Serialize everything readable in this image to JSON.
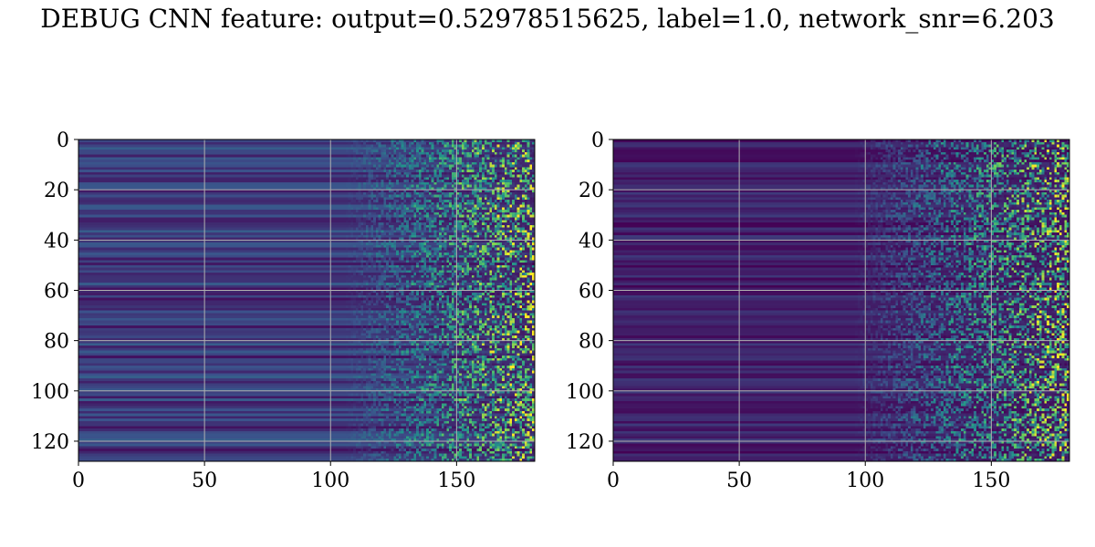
{
  "title": "DEBUG CNN feature: output=0.52978515625, label=1.0, network_snr=6.203",
  "colormap": "viridis",
  "colormap_stops": [
    "#440154",
    "#3b528b",
    "#21918c",
    "#5ec962",
    "#fde725"
  ],
  "grid": true,
  "chart_data": [
    {
      "type": "heatmap",
      "title": "",
      "xlabel": "",
      "ylabel": "",
      "x_ticks": [
        "0",
        "50",
        "100",
        "150"
      ],
      "y_ticks": [
        "0",
        "20",
        "40",
        "60",
        "80",
        "100",
        "120"
      ],
      "xlim": [
        0,
        181
      ],
      "ylim": [
        128,
        0
      ],
      "shape": [
        128,
        181
      ],
      "description_of_values": "low uniform background (0.05-0.25) with horizontal striping for columns 0-120, noisy high-intensity speckle (up to ~1.0) for columns 130-181",
      "noise_onset_column_approx": 125,
      "background_level_range": [
        0.05,
        0.3
      ],
      "speckle_peak_level": 1.0
    },
    {
      "type": "heatmap",
      "title": "",
      "xlabel": "",
      "ylabel": "",
      "x_ticks": [
        "0",
        "50",
        "100",
        "150"
      ],
      "y_ticks": [
        "0",
        "20",
        "40",
        "60",
        "80",
        "100",
        "120"
      ],
      "xlim": [
        0,
        181
      ],
      "ylim": [
        128,
        0
      ],
      "shape": [
        128,
        181
      ],
      "description_of_values": "darker background (0.0-0.15) with faint horizontal striping for columns 0-110, noisy speckle (up to ~1.0) for columns 120-181",
      "noise_onset_column_approx": 115,
      "background_level_range": [
        0.0,
        0.18
      ],
      "speckle_peak_level": 1.0
    }
  ]
}
